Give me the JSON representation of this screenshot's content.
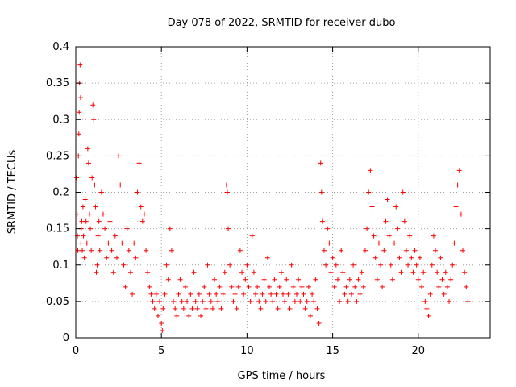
{
  "chart_data": {
    "type": "scatter",
    "title": "Day 078 of 2022, SRMTID for receiver dubo",
    "xlabel": "GPS time / hours",
    "ylabel": "SRMTID / TECUs",
    "xlim": [
      0,
      24.2
    ],
    "ylim": [
      0,
      0.4
    ],
    "xticks": [
      0,
      5,
      10,
      15,
      20
    ],
    "xtick_labels": [
      "0",
      "5",
      "10",
      "15",
      "20"
    ],
    "yticks": [
      0,
      0.05,
      0.1,
      0.15,
      0.2,
      0.25,
      0.3,
      0.35,
      0.4
    ],
    "ytick_labels": [
      "0",
      "0.05",
      "0.1",
      "0.15",
      "0.2",
      "0.25",
      "0.3",
      "0.35",
      "0.4"
    ],
    "grid": true,
    "marker": "plus",
    "color": "#ff0000",
    "series": [
      {
        "name": "SRMTID",
        "points": [
          [
            0.05,
            0.22
          ],
          [
            0.08,
            0.17
          ],
          [
            0.1,
            0.14
          ],
          [
            0.12,
            0.12
          ],
          [
            0.15,
            0.25
          ],
          [
            0.18,
            0.28
          ],
          [
            0.2,
            0.31
          ],
          [
            0.22,
            0.35
          ],
          [
            0.25,
            0.375
          ],
          [
            0.28,
            0.33
          ],
          [
            0.3,
            0.13
          ],
          [
            0.32,
            0.15
          ],
          [
            0.35,
            0.16
          ],
          [
            0.38,
            0.12
          ],
          [
            0.42,
            0.18
          ],
          [
            0.45,
            0.14
          ],
          [
            0.5,
            0.11
          ],
          [
            0.55,
            0.19
          ],
          [
            0.6,
            0.16
          ],
          [
            0.65,
            0.13
          ],
          [
            0.7,
            0.26
          ],
          [
            0.75,
            0.24
          ],
          [
            0.8,
            0.17
          ],
          [
            0.85,
            0.15
          ],
          [
            0.9,
            0.12
          ],
          [
            0.95,
            0.22
          ],
          [
            1.0,
            0.32
          ],
          [
            1.05,
            0.3
          ],
          [
            1.1,
            0.21
          ],
          [
            1.15,
            0.18
          ],
          [
            1.2,
            0.09
          ],
          [
            1.25,
            0.1
          ],
          [
            1.3,
            0.14
          ],
          [
            1.35,
            0.16
          ],
          [
            1.4,
            0.12
          ],
          [
            1.5,
            0.2
          ],
          [
            1.6,
            0.17
          ],
          [
            1.7,
            0.15
          ],
          [
            1.8,
            0.11
          ],
          [
            1.9,
            0.13
          ],
          [
            2.0,
            0.16
          ],
          [
            2.1,
            0.12
          ],
          [
            2.2,
            0.09
          ],
          [
            2.3,
            0.14
          ],
          [
            2.4,
            0.11
          ],
          [
            2.5,
            0.25
          ],
          [
            2.6,
            0.21
          ],
          [
            2.7,
            0.13
          ],
          [
            2.8,
            0.1
          ],
          [
            2.9,
            0.07
          ],
          [
            3.0,
            0.15
          ],
          [
            3.1,
            0.12
          ],
          [
            3.2,
            0.09
          ],
          [
            3.3,
            0.06
          ],
          [
            3.4,
            0.13
          ],
          [
            3.5,
            0.11
          ],
          [
            3.6,
            0.2
          ],
          [
            3.7,
            0.24
          ],
          [
            3.8,
            0.18
          ],
          [
            3.9,
            0.16
          ],
          [
            4.0,
            0.17
          ],
          [
            4.1,
            0.12
          ],
          [
            4.2,
            0.09
          ],
          [
            4.3,
            0.07
          ],
          [
            4.4,
            0.06
          ],
          [
            4.5,
            0.05
          ],
          [
            4.6,
            0.04
          ],
          [
            4.7,
            0.06
          ],
          [
            4.8,
            0.03
          ],
          [
            4.9,
            0.05
          ],
          [
            5.0,
            0.02
          ],
          [
            5.05,
            0.01
          ],
          [
            5.1,
            0.04
          ],
          [
            5.2,
            0.06
          ],
          [
            5.3,
            0.1
          ],
          [
            5.4,
            0.08
          ],
          [
            5.5,
            0.15
          ],
          [
            5.6,
            0.12
          ],
          [
            5.7,
            0.05
          ],
          [
            5.8,
            0.04
          ],
          [
            5.9,
            0.03
          ],
          [
            6.0,
            0.06
          ],
          [
            6.1,
            0.08
          ],
          [
            6.2,
            0.05
          ],
          [
            6.3,
            0.04
          ],
          [
            6.4,
            0.07
          ],
          [
            6.5,
            0.05
          ],
          [
            6.6,
            0.03
          ],
          [
            6.7,
            0.06
          ],
          [
            6.8,
            0.04
          ],
          [
            6.9,
            0.09
          ],
          [
            7.0,
            0.05
          ],
          [
            7.1,
            0.04
          ],
          [
            7.2,
            0.06
          ],
          [
            7.3,
            0.03
          ],
          [
            7.4,
            0.05
          ],
          [
            7.5,
            0.07
          ],
          [
            7.6,
            0.04
          ],
          [
            7.7,
            0.1
          ],
          [
            7.8,
            0.06
          ],
          [
            7.9,
            0.05
          ],
          [
            8.0,
            0.04
          ],
          [
            8.1,
            0.08
          ],
          [
            8.2,
            0.06
          ],
          [
            8.3,
            0.05
          ],
          [
            8.4,
            0.07
          ],
          [
            8.5,
            0.04
          ],
          [
            8.6,
            0.06
          ],
          [
            8.7,
            0.09
          ],
          [
            8.8,
            0.21
          ],
          [
            8.85,
            0.2
          ],
          [
            8.9,
            0.15
          ],
          [
            9.0,
            0.1
          ],
          [
            9.1,
            0.07
          ],
          [
            9.2,
            0.05
          ],
          [
            9.3,
            0.06
          ],
          [
            9.4,
            0.04
          ],
          [
            9.5,
            0.07
          ],
          [
            9.6,
            0.12
          ],
          [
            9.7,
            0.09
          ],
          [
            9.8,
            0.06
          ],
          [
            9.9,
            0.08
          ],
          [
            10.0,
            0.1
          ],
          [
            10.1,
            0.07
          ],
          [
            10.2,
            0.05
          ],
          [
            10.3,
            0.14
          ],
          [
            10.4,
            0.09
          ],
          [
            10.5,
            0.06
          ],
          [
            10.6,
            0.07
          ],
          [
            10.7,
            0.05
          ],
          [
            10.8,
            0.04
          ],
          [
            10.9,
            0.06
          ],
          [
            11.0,
            0.08
          ],
          [
            11.1,
            0.05
          ],
          [
            11.2,
            0.11
          ],
          [
            11.3,
            0.07
          ],
          [
            11.4,
            0.06
          ],
          [
            11.5,
            0.05
          ],
          [
            11.6,
            0.08
          ],
          [
            11.7,
            0.06
          ],
          [
            11.8,
            0.04
          ],
          [
            11.9,
            0.07
          ],
          [
            12.0,
            0.09
          ],
          [
            12.1,
            0.06
          ],
          [
            12.2,
            0.05
          ],
          [
            12.3,
            0.08
          ],
          [
            12.4,
            0.06
          ],
          [
            12.5,
            0.04
          ],
          [
            12.6,
            0.1
          ],
          [
            12.7,
            0.07
          ],
          [
            12.8,
            0.05
          ],
          [
            12.9,
            0.06
          ],
          [
            13.0,
            0.08
          ],
          [
            13.1,
            0.05
          ],
          [
            13.2,
            0.07
          ],
          [
            13.3,
            0.06
          ],
          [
            13.4,
            0.04
          ],
          [
            13.5,
            0.05
          ],
          [
            13.6,
            0.07
          ],
          [
            13.7,
            0.03
          ],
          [
            13.8,
            0.06
          ],
          [
            13.9,
            0.05
          ],
          [
            14.0,
            0.08
          ],
          [
            14.1,
            0.04
          ],
          [
            14.2,
            0.02
          ],
          [
            14.3,
            0.24
          ],
          [
            14.35,
            0.2
          ],
          [
            14.4,
            0.16
          ],
          [
            14.5,
            0.12
          ],
          [
            14.6,
            0.1
          ],
          [
            14.7,
            0.15
          ],
          [
            14.8,
            0.13
          ],
          [
            14.9,
            0.09
          ],
          [
            15.0,
            0.11
          ],
          [
            15.1,
            0.07
          ],
          [
            15.2,
            0.1
          ],
          [
            15.3,
            0.08
          ],
          [
            15.4,
            0.05
          ],
          [
            15.5,
            0.12
          ],
          [
            15.6,
            0.09
          ],
          [
            15.7,
            0.06
          ],
          [
            15.8,
            0.07
          ],
          [
            15.9,
            0.05
          ],
          [
            16.0,
            0.08
          ],
          [
            16.1,
            0.06
          ],
          [
            16.2,
            0.1
          ],
          [
            16.3,
            0.07
          ],
          [
            16.4,
            0.05
          ],
          [
            16.5,
            0.08
          ],
          [
            16.6,
            0.06
          ],
          [
            16.7,
            0.09
          ],
          [
            16.8,
            0.07
          ],
          [
            16.9,
            0.12
          ],
          [
            17.0,
            0.15
          ],
          [
            17.1,
            0.2
          ],
          [
            17.2,
            0.23
          ],
          [
            17.3,
            0.18
          ],
          [
            17.4,
            0.14
          ],
          [
            17.5,
            0.11
          ],
          [
            17.6,
            0.08
          ],
          [
            17.7,
            0.13
          ],
          [
            17.8,
            0.1
          ],
          [
            17.9,
            0.07
          ],
          [
            18.0,
            0.12
          ],
          [
            18.1,
            0.16
          ],
          [
            18.2,
            0.19
          ],
          [
            18.3,
            0.14
          ],
          [
            18.4,
            0.1
          ],
          [
            18.5,
            0.08
          ],
          [
            18.6,
            0.13
          ],
          [
            18.7,
            0.18
          ],
          [
            18.8,
            0.15
          ],
          [
            18.9,
            0.11
          ],
          [
            19.0,
            0.09
          ],
          [
            19.1,
            0.2
          ],
          [
            19.2,
            0.16
          ],
          [
            19.3,
            0.12
          ],
          [
            19.4,
            0.1
          ],
          [
            19.5,
            0.14
          ],
          [
            19.6,
            0.11
          ],
          [
            19.7,
            0.09
          ],
          [
            19.8,
            0.12
          ],
          [
            19.9,
            0.1
          ],
          [
            20.0,
            0.08
          ],
          [
            20.1,
            0.11
          ],
          [
            20.2,
            0.07
          ],
          [
            20.3,
            0.09
          ],
          [
            20.4,
            0.05
          ],
          [
            20.5,
            0.04
          ],
          [
            20.6,
            0.03
          ],
          [
            20.7,
            0.06
          ],
          [
            20.8,
            0.1
          ],
          [
            20.9,
            0.14
          ],
          [
            21.0,
            0.12
          ],
          [
            21.1,
            0.09
          ],
          [
            21.2,
            0.07
          ],
          [
            21.3,
            0.11
          ],
          [
            21.4,
            0.08
          ],
          [
            21.5,
            0.06
          ],
          [
            21.6,
            0.09
          ],
          [
            21.7,
            0.07
          ],
          [
            21.8,
            0.05
          ],
          [
            21.9,
            0.08
          ],
          [
            22.0,
            0.1
          ],
          [
            22.1,
            0.13
          ],
          [
            22.2,
            0.18
          ],
          [
            22.3,
            0.21
          ],
          [
            22.4,
            0.23
          ],
          [
            22.5,
            0.17
          ],
          [
            22.6,
            0.12
          ],
          [
            22.7,
            0.09
          ],
          [
            22.8,
            0.07
          ],
          [
            22.9,
            0.05
          ]
        ]
      }
    ]
  }
}
